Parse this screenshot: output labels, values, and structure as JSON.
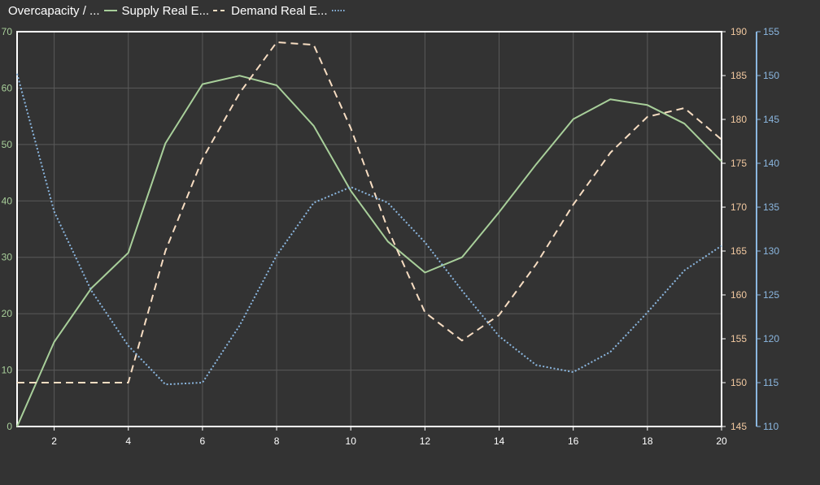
{
  "chart_data": {
    "type": "line",
    "title": "",
    "legend_position": "top-left",
    "grid": true,
    "x": [
      1,
      2,
      3,
      4,
      5,
      6,
      7,
      8,
      9,
      10,
      11,
      12,
      13,
      14,
      15,
      16,
      17,
      18,
      19,
      20
    ],
    "xlim": [
      1,
      20
    ],
    "xticks": [
      2,
      4,
      6,
      8,
      10,
      12,
      14,
      16,
      18,
      20
    ],
    "axes": [
      {
        "id": "left",
        "ylim": [
          0,
          70
        ],
        "ticks": [
          0,
          10,
          20,
          30,
          40,
          50,
          60,
          70
        ],
        "color": "#a8cf9a"
      },
      {
        "id": "right1",
        "ylim": [
          145,
          190
        ],
        "ticks": [
          145,
          150,
          155,
          160,
          165,
          170,
          175,
          180,
          185,
          190
        ],
        "color": "#f2c9a0"
      },
      {
        "id": "right2",
        "ylim": [
          110,
          155
        ],
        "ticks": [
          110,
          115,
          120,
          125,
          130,
          135,
          140,
          145,
          150,
          155
        ],
        "color": "#8bb7e0"
      }
    ],
    "series": [
      {
        "name": "Overcapacity / ...",
        "axis": "left",
        "color": "#a8cf9a",
        "style": "solid",
        "values": [
          0,
          15,
          24.5,
          30.8,
          50.2,
          60.7,
          62.2,
          60.5,
          53.3,
          41.8,
          32.8,
          27.3,
          30,
          38,
          46.5,
          54.5,
          58,
          57,
          53.7,
          47
        ]
      },
      {
        "name": "Supply Real E...",
        "axis": "right1",
        "color": "#f7ddc2",
        "style": "dashed",
        "values": [
          150,
          150,
          150,
          150,
          165,
          175.5,
          183,
          188.8,
          188.5,
          179,
          167.5,
          158,
          154.8,
          157.7,
          163.5,
          170.3,
          176.2,
          180.3,
          181.3,
          177.7
        ]
      },
      {
        "name": "Demand Real E...",
        "axis": "right2",
        "color": "#8bb7e0",
        "style": "dotted",
        "values": [
          150.2,
          134.5,
          125.5,
          119.2,
          114.8,
          115,
          121.5,
          129.5,
          135.5,
          137.3,
          135.5,
          131,
          125.5,
          120.3,
          117,
          116.2,
          118.5,
          123,
          127.8,
          130.6
        ]
      }
    ]
  }
}
